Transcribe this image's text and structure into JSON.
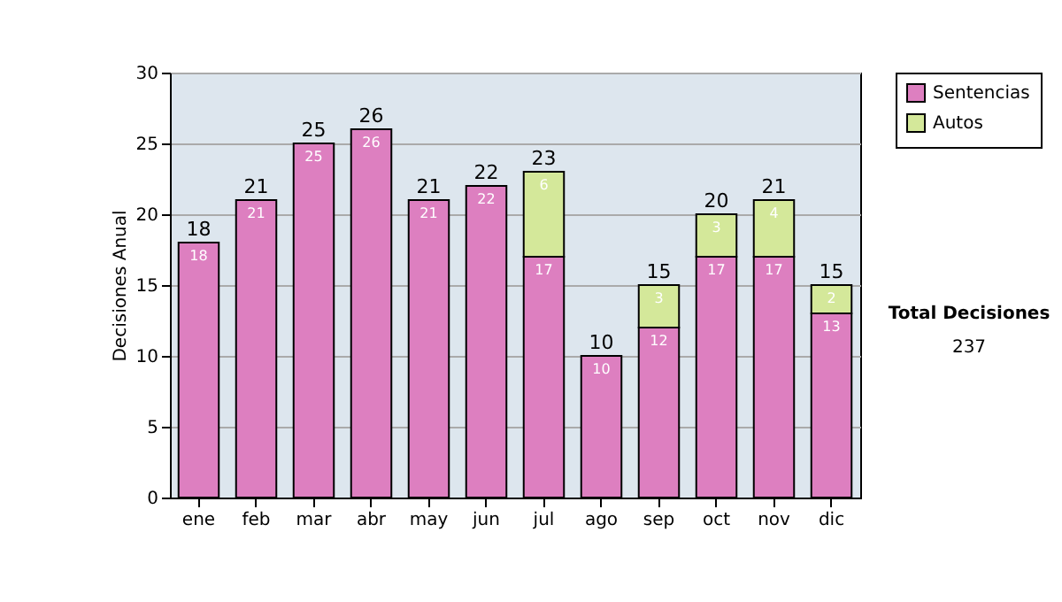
{
  "chart_data": {
    "type": "bar",
    "stacked": true,
    "ylabel": "Decisiones Anual",
    "categories": [
      "ene",
      "feb",
      "mar",
      "abr",
      "may",
      "jun",
      "jul",
      "ago",
      "sep",
      "oct",
      "nov",
      "dic"
    ],
    "series": [
      {
        "name": "Sentencias",
        "color": "#dd7fc0",
        "values": [
          18,
          21,
          25,
          26,
          21,
          22,
          17,
          10,
          12,
          17,
          17,
          13
        ]
      },
      {
        "name": "Autos",
        "color": "#d4e89a",
        "values": [
          null,
          null,
          null,
          null,
          null,
          null,
          6,
          null,
          3,
          3,
          4,
          2
        ]
      }
    ],
    "totals": [
      "18",
      "21",
      "25",
      "26",
      "21",
      "22",
      "23",
      "10",
      "15",
      "20",
      "21",
      "15"
    ],
    "data_labels": true,
    "ylim": [
      0,
      30
    ],
    "yticks": [
      0,
      5,
      10,
      15,
      20,
      25,
      30
    ],
    "grid": "y",
    "legend": "right",
    "annotations": [
      "Total Decisiones",
      "237"
    ]
  }
}
